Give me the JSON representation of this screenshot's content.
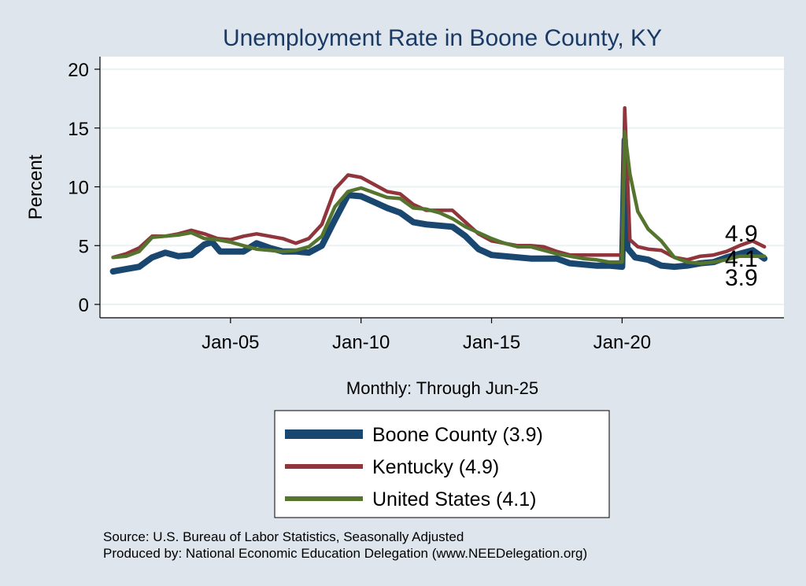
{
  "chart_data": {
    "type": "line",
    "title": "Unemployment Rate in Boone  County, KY",
    "ylabel": "Percent",
    "xlabel": "Monthly: Through Jun-25",
    "ylim": [
      0,
      20
    ],
    "yticks": [
      "0",
      "5",
      "10",
      "15",
      "20"
    ],
    "xlim": [
      2000.0,
      2026.2
    ],
    "xticks": [
      {
        "x": 2005.0,
        "label": "Jan-05"
      },
      {
        "x": 2010.0,
        "label": "Jan-10"
      },
      {
        "x": 2015.0,
        "label": "Jan-15"
      },
      {
        "x": 2020.0,
        "label": "Jan-20"
      }
    ],
    "grid": true,
    "legend_position": "bottom",
    "series": [
      {
        "name": "Boone  County (3.9)",
        "legend_label": "Boone  County (3.9)",
        "end_label": "3.9",
        "color": "#1a476f",
        "points": [
          [
            2000.5,
            2.8
          ],
          [
            2001.0,
            3.0
          ],
          [
            2001.5,
            3.2
          ],
          [
            2002.0,
            4.0
          ],
          [
            2002.5,
            4.4
          ],
          [
            2003.0,
            4.1
          ],
          [
            2003.5,
            4.2
          ],
          [
            2004.0,
            5.1
          ],
          [
            2004.3,
            5.3
          ],
          [
            2004.6,
            4.5
          ],
          [
            2005.0,
            4.5
          ],
          [
            2005.5,
            4.5
          ],
          [
            2006.0,
            5.2
          ],
          [
            2006.5,
            4.8
          ],
          [
            2007.0,
            4.5
          ],
          [
            2007.5,
            4.5
          ],
          [
            2008.0,
            4.4
          ],
          [
            2008.5,
            5.0
          ],
          [
            2009.0,
            7.2
          ],
          [
            2009.5,
            9.3
          ],
          [
            2010.0,
            9.2
          ],
          [
            2010.5,
            8.7
          ],
          [
            2011.0,
            8.2
          ],
          [
            2011.5,
            7.8
          ],
          [
            2012.0,
            7.0
          ],
          [
            2012.5,
            6.8
          ],
          [
            2013.0,
            6.7
          ],
          [
            2013.5,
            6.6
          ],
          [
            2014.0,
            5.8
          ],
          [
            2014.5,
            4.7
          ],
          [
            2015.0,
            4.2
          ],
          [
            2015.5,
            4.1
          ],
          [
            2016.0,
            4.0
          ],
          [
            2016.5,
            3.9
          ],
          [
            2017.0,
            3.9
          ],
          [
            2017.5,
            3.9
          ],
          [
            2018.0,
            3.5
          ],
          [
            2018.5,
            3.4
          ],
          [
            2019.0,
            3.3
          ],
          [
            2019.5,
            3.3
          ],
          [
            2020.0,
            3.2
          ],
          [
            2020.1,
            14.0
          ],
          [
            2020.2,
            4.8
          ],
          [
            2020.5,
            4.0
          ],
          [
            2021.0,
            3.8
          ],
          [
            2021.5,
            3.3
          ],
          [
            2022.0,
            3.2
          ],
          [
            2022.5,
            3.3
          ],
          [
            2023.0,
            3.5
          ],
          [
            2023.5,
            3.6
          ],
          [
            2024.0,
            4.0
          ],
          [
            2024.5,
            4.3
          ],
          [
            2025.0,
            4.6
          ],
          [
            2025.45,
            3.9
          ]
        ]
      },
      {
        "name": "Kentucky (4.9)",
        "legend_label": "Kentucky (4.9)",
        "end_label": "4.9",
        "color": "#90353b",
        "points": [
          [
            2000.5,
            4.0
          ],
          [
            2001.0,
            4.3
          ],
          [
            2001.5,
            4.8
          ],
          [
            2002.0,
            5.8
          ],
          [
            2002.5,
            5.8
          ],
          [
            2003.0,
            6.0
          ],
          [
            2003.5,
            6.3
          ],
          [
            2004.0,
            6.0
          ],
          [
            2004.5,
            5.6
          ],
          [
            2005.0,
            5.5
          ],
          [
            2005.5,
            5.8
          ],
          [
            2006.0,
            6.0
          ],
          [
            2006.5,
            5.8
          ],
          [
            2007.0,
            5.6
          ],
          [
            2007.5,
            5.2
          ],
          [
            2008.0,
            5.6
          ],
          [
            2008.5,
            6.8
          ],
          [
            2009.0,
            9.8
          ],
          [
            2009.5,
            11.0
          ],
          [
            2010.0,
            10.8
          ],
          [
            2010.5,
            10.2
          ],
          [
            2011.0,
            9.6
          ],
          [
            2011.5,
            9.4
          ],
          [
            2012.0,
            8.5
          ],
          [
            2012.5,
            8.0
          ],
          [
            2013.0,
            8.0
          ],
          [
            2013.5,
            8.0
          ],
          [
            2014.0,
            7.0
          ],
          [
            2014.5,
            6.0
          ],
          [
            2015.0,
            5.4
          ],
          [
            2015.5,
            5.2
          ],
          [
            2016.0,
            5.0
          ],
          [
            2016.5,
            5.0
          ],
          [
            2017.0,
            4.9
          ],
          [
            2017.5,
            4.5
          ],
          [
            2018.0,
            4.2
          ],
          [
            2018.5,
            4.2
          ],
          [
            2019.0,
            4.2
          ],
          [
            2019.5,
            4.2
          ],
          [
            2020.0,
            4.2
          ],
          [
            2020.1,
            16.7
          ],
          [
            2020.3,
            5.5
          ],
          [
            2020.6,
            4.9
          ],
          [
            2021.0,
            4.7
          ],
          [
            2021.5,
            4.6
          ],
          [
            2022.0,
            4.0
          ],
          [
            2022.5,
            3.8
          ],
          [
            2023.0,
            4.1
          ],
          [
            2023.5,
            4.2
          ],
          [
            2024.0,
            4.5
          ],
          [
            2024.5,
            5.0
          ],
          [
            2025.0,
            5.4
          ],
          [
            2025.45,
            4.9
          ]
        ]
      },
      {
        "name": "United States (4.1)",
        "legend_label": "United States (4.1)",
        "end_label": "4.1",
        "color": "#55752f",
        "points": [
          [
            2000.5,
            4.0
          ],
          [
            2001.0,
            4.1
          ],
          [
            2001.5,
            4.5
          ],
          [
            2002.0,
            5.7
          ],
          [
            2002.5,
            5.8
          ],
          [
            2003.0,
            5.9
          ],
          [
            2003.5,
            6.1
          ],
          [
            2004.0,
            5.6
          ],
          [
            2004.5,
            5.5
          ],
          [
            2005.0,
            5.3
          ],
          [
            2005.5,
            5.0
          ],
          [
            2006.0,
            4.7
          ],
          [
            2006.5,
            4.6
          ],
          [
            2007.0,
            4.5
          ],
          [
            2007.5,
            4.6
          ],
          [
            2008.0,
            4.9
          ],
          [
            2008.5,
            5.8
          ],
          [
            2009.0,
            8.3
          ],
          [
            2009.5,
            9.6
          ],
          [
            2010.0,
            9.9
          ],
          [
            2010.5,
            9.5
          ],
          [
            2011.0,
            9.1
          ],
          [
            2011.5,
            9.0
          ],
          [
            2012.0,
            8.2
          ],
          [
            2012.5,
            8.1
          ],
          [
            2013.0,
            7.8
          ],
          [
            2013.5,
            7.3
          ],
          [
            2014.0,
            6.6
          ],
          [
            2014.5,
            6.1
          ],
          [
            2015.0,
            5.6
          ],
          [
            2015.5,
            5.2
          ],
          [
            2016.0,
            4.9
          ],
          [
            2016.5,
            4.9
          ],
          [
            2017.0,
            4.6
          ],
          [
            2017.5,
            4.3
          ],
          [
            2018.0,
            4.1
          ],
          [
            2018.5,
            3.9
          ],
          [
            2019.0,
            3.8
          ],
          [
            2019.5,
            3.6
          ],
          [
            2020.0,
            3.6
          ],
          [
            2020.1,
            14.7
          ],
          [
            2020.3,
            11.1
          ],
          [
            2020.6,
            7.9
          ],
          [
            2021.0,
            6.4
          ],
          [
            2021.5,
            5.4
          ],
          [
            2022.0,
            4.0
          ],
          [
            2022.5,
            3.6
          ],
          [
            2023.0,
            3.5
          ],
          [
            2023.5,
            3.6
          ],
          [
            2024.0,
            3.8
          ],
          [
            2024.5,
            4.1
          ],
          [
            2025.0,
            4.1
          ],
          [
            2025.45,
            4.1
          ]
        ]
      }
    ],
    "source_lines": [
      "Source: U.S. Bureau of Labor Statistics, Seasonally Adjusted",
      "Produced by: National Economic Education Delegation (www.NEEDelegation.org)"
    ]
  }
}
